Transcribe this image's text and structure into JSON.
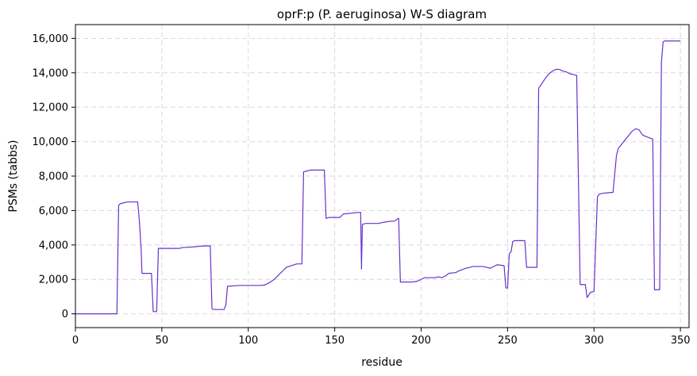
{
  "chart_data": {
    "type": "line",
    "title": "oprF:p (P. aeruginosa) W-S diagram",
    "xlabel": "residue",
    "ylabel": "PSMs (tabbs)",
    "xlim": [
      0,
      355
    ],
    "ylim": [
      -800,
      16800
    ],
    "xticks": [
      0,
      50,
      100,
      150,
      200,
      250,
      300,
      350
    ],
    "xtick_labels": [
      "0",
      "50",
      "100",
      "150",
      "200",
      "250",
      "300",
      "350"
    ],
    "yticks": [
      0,
      2000,
      4000,
      6000,
      8000,
      10000,
      12000,
      14000,
      16000
    ],
    "ytick_labels": [
      "0",
      "2,000",
      "4,000",
      "6,000",
      "8,000",
      "10,000",
      "12,000",
      "14,000",
      "16,000"
    ],
    "grid": true,
    "line_color": "#6633cc",
    "series": [
      {
        "x": [
          0,
          24,
          25,
          26,
          28,
          30,
          32,
          36,
          37,
          38,
          38.5,
          44,
          45,
          46,
          47,
          48,
          55,
          60,
          62,
          70,
          72,
          78,
          79,
          80,
          86,
          87,
          88,
          95,
          100,
          102,
          108,
          110,
          112,
          115,
          118,
          120,
          122,
          128,
          131,
          132,
          134,
          136,
          144,
          145,
          147,
          150,
          153,
          155,
          165,
          165.5,
          166,
          168,
          175,
          180,
          185,
          186,
          187,
          188,
          195,
          198,
          200,
          202,
          205,
          208,
          210,
          212,
          214,
          216,
          220,
          222,
          226,
          228,
          230,
          232,
          236,
          240,
          244,
          248,
          249,
          250,
          251,
          252,
          253,
          254,
          255,
          256,
          260,
          261,
          267,
          268,
          270,
          272,
          274,
          276,
          278,
          280,
          282,
          284,
          286,
          288,
          290,
          292,
          295,
          296,
          298,
          300,
          302,
          303,
          305,
          310,
          311,
          313,
          314,
          316,
          318,
          320,
          322,
          324,
          326,
          328,
          330,
          334,
          335,
          338,
          339,
          340,
          341,
          346,
          350
        ],
        "y": [
          0,
          0,
          6300,
          6400,
          6450,
          6500,
          6500,
          6500,
          5400,
          3800,
          2350,
          2350,
          130,
          130,
          130,
          3800,
          3800,
          3800,
          3850,
          3900,
          3930,
          3950,
          300,
          250,
          250,
          500,
          1600,
          1650,
          1650,
          1650,
          1650,
          1700,
          1800,
          2000,
          2300,
          2500,
          2700,
          2900,
          2900,
          8250,
          8300,
          8350,
          8350,
          5550,
          5600,
          5600,
          5600,
          5800,
          5900,
          2600,
          5200,
          5250,
          5250,
          5350,
          5400,
          5500,
          5550,
          1850,
          1850,
          1900,
          2000,
          2100,
          2100,
          2100,
          2150,
          2100,
          2200,
          2350,
          2400,
          2500,
          2650,
          2700,
          2750,
          2750,
          2750,
          2650,
          2850,
          2800,
          1500,
          1500,
          3500,
          3600,
          4200,
          4250,
          4250,
          4250,
          4250,
          2700,
          2700,
          13100,
          13400,
          13700,
          13950,
          14100,
          14200,
          14200,
          14100,
          14050,
          13950,
          13900,
          13850,
          1700,
          1700,
          950,
          1250,
          1300,
          6800,
          6950,
          7000,
          7050,
          7050,
          9200,
          9600,
          9850,
          10100,
          10350,
          10600,
          10750,
          10700,
          10400,
          10300,
          10150,
          1400,
          1400,
          14600,
          15800,
          15850,
          15850,
          15850
        ]
      }
    ]
  }
}
